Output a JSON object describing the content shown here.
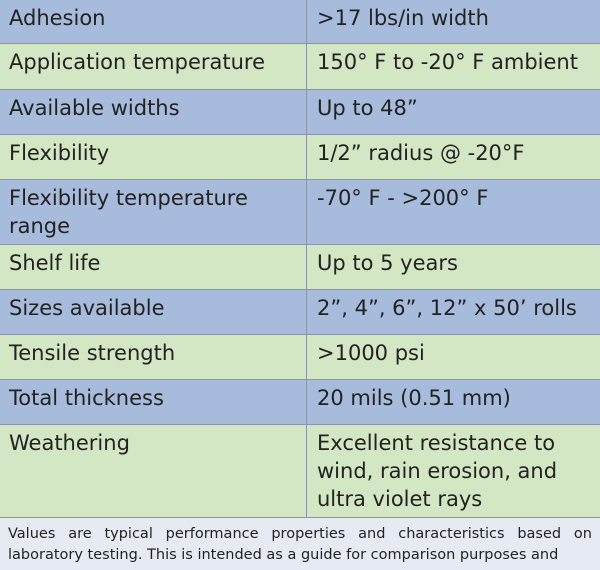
{
  "table": {
    "rows": [
      [
        "Adhesion",
        ">17 lbs/in width"
      ],
      [
        "Application temperature",
        "150° F to -20° F ambient"
      ],
      [
        "Available widths",
        "Up to 48”"
      ],
      [
        "Flexibility",
        "1/2” radius @ -20°F"
      ],
      [
        "Flexibility temperature range",
        "-70° F - >200° F"
      ],
      [
        "Shelf life",
        "Up to 5 years"
      ],
      [
        "Sizes available",
        "2”, 4”, 6”, 12” x 50’ rolls"
      ],
      [
        "Tensile strength",
        ">1000 psi"
      ],
      [
        "Total thickness",
        "20 mils (0.51 mm)"
      ],
      [
        "Weathering",
        "Excellent resistance to wind, rain erosion, and ultra violet rays"
      ]
    ]
  },
  "footnote": "Values are typical performance properties and characteristics based on laboratory testing. This is intended as a guide for comparison purposes and"
}
